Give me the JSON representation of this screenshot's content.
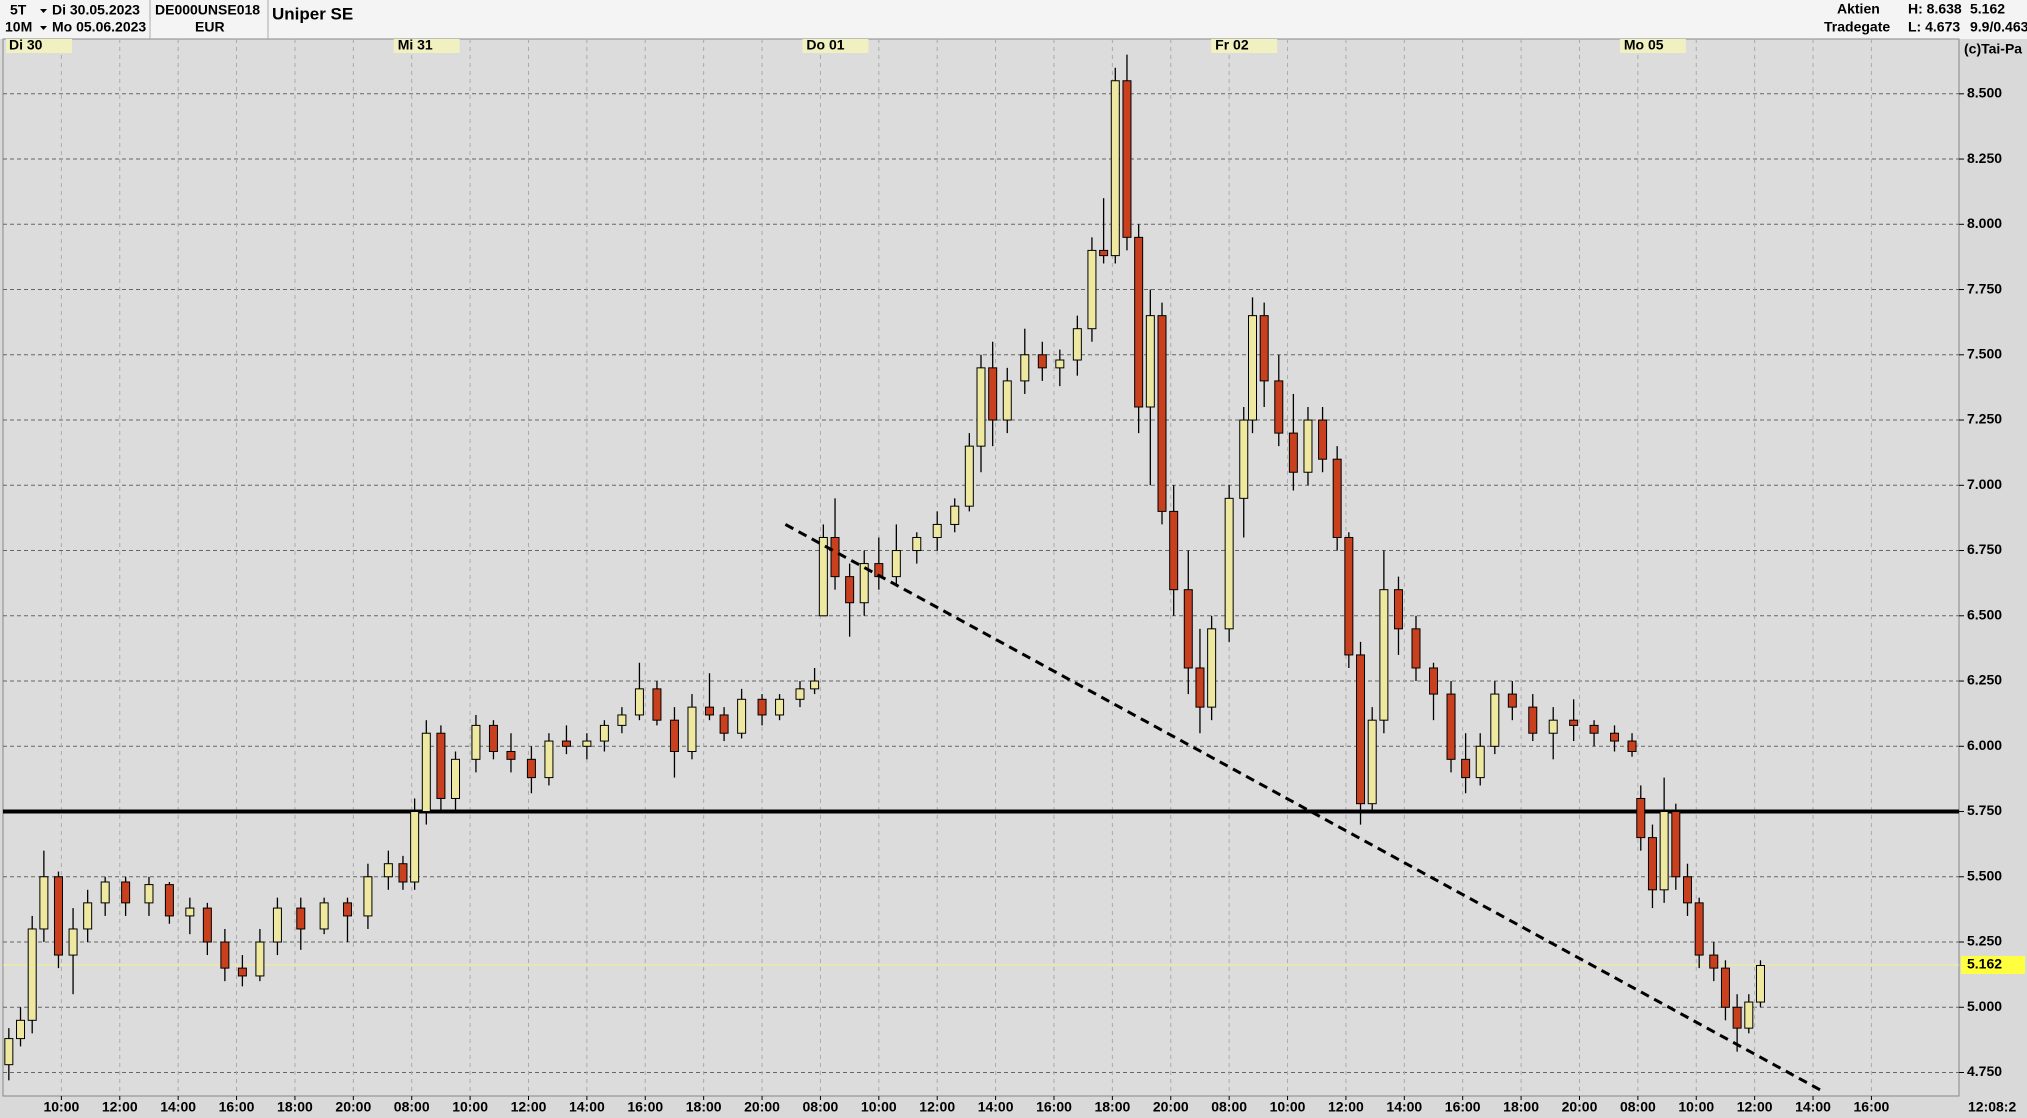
{
  "header": {
    "period": "5T",
    "from": "Di 30.05.2023",
    "interval": "10M",
    "to": "Mo 05.06.2023",
    "isin": "DE000UNSE018",
    "currency": "EUR",
    "name": "Uniper SE",
    "market_type": "Aktien",
    "exchange": "Tradegate",
    "high": "H: 8.638",
    "low": "L: 4.673",
    "last": "5.162",
    "change": "9.9/0.463",
    "copyright": "(c)Tai-Pa",
    "time": "12:08:2"
  },
  "chart_data": {
    "type": "candlestick",
    "up_color": "#eee8a0",
    "down_color": "#c8401e",
    "xlim": [
      0,
      67
    ],
    "ylim": [
      4.66,
      8.71
    ],
    "grid": true,
    "yticks": [
      {
        "value": 4.75,
        "label": "4.750"
      },
      {
        "value": 5,
        "label": "5.000"
      },
      {
        "value": 5.25,
        "label": "5.250"
      },
      {
        "value": 5.5,
        "label": "5.500"
      },
      {
        "value": 5.75,
        "label": "5.750"
      },
      {
        "value": 6,
        "label": "6.000"
      },
      {
        "value": 6.25,
        "label": "6.250"
      },
      {
        "value": 6.5,
        "label": "6.500"
      },
      {
        "value": 6.75,
        "label": "6.750"
      },
      {
        "value": 7,
        "label": "7.000"
      },
      {
        "value": 7.25,
        "label": "7.250"
      },
      {
        "value": 7.5,
        "label": "7.500"
      },
      {
        "value": 7.75,
        "label": "7.750"
      },
      {
        "value": 8,
        "label": "8.000"
      },
      {
        "value": 8.25,
        "label": "8.250"
      },
      {
        "value": 8.5,
        "label": "8.500"
      }
    ],
    "xticks": [
      {
        "value": 2,
        "label": "10:00"
      },
      {
        "value": 4,
        "label": "12:00"
      },
      {
        "value": 6,
        "label": "14:00"
      },
      {
        "value": 8,
        "label": "16:00"
      },
      {
        "value": 10,
        "label": "18:00"
      },
      {
        "value": 12,
        "label": "20:00"
      },
      {
        "value": 14,
        "label": "08:00"
      },
      {
        "value": 16,
        "label": "10:00"
      },
      {
        "value": 18,
        "label": "12:00"
      },
      {
        "value": 20,
        "label": "14:00"
      },
      {
        "value": 22,
        "label": "16:00"
      },
      {
        "value": 24,
        "label": "18:00"
      },
      {
        "value": 26,
        "label": "20:00"
      },
      {
        "value": 28,
        "label": "08:00"
      },
      {
        "value": 30,
        "label": "10:00"
      },
      {
        "value": 32,
        "label": "12:00"
      },
      {
        "value": 34,
        "label": "14:00"
      },
      {
        "value": 36,
        "label": "16:00"
      },
      {
        "value": 38,
        "label": "18:00"
      },
      {
        "value": 40,
        "label": "20:00"
      },
      {
        "value": 42,
        "label": "08:00"
      },
      {
        "value": 44,
        "label": "10:00"
      },
      {
        "value": 46,
        "label": "12:00"
      },
      {
        "value": 48,
        "label": "14:00"
      },
      {
        "value": 50,
        "label": "16:00"
      },
      {
        "value": 52,
        "label": "18:00"
      },
      {
        "value": 54,
        "label": "20:00"
      },
      {
        "value": 56,
        "label": "08:00"
      },
      {
        "value": 58,
        "label": "10:00"
      },
      {
        "value": 60,
        "label": "12:00"
      },
      {
        "value": 62,
        "label": "14:00"
      },
      {
        "value": 64,
        "label": "16:00"
      }
    ],
    "day_ticks": [
      {
        "value": 0,
        "label": "Di  30"
      },
      {
        "value": 14,
        "label": "Mi  31"
      },
      {
        "value": 28,
        "label": "Do  01"
      },
      {
        "value": 42,
        "label": "Fr  02"
      },
      {
        "value": 56,
        "label": "Mo  05"
      }
    ],
    "hline": {
      "value": 5.75
    },
    "trendline": {
      "x": [
        26.8,
        62.3
      ],
      "y": [
        6.85,
        4.68
      ]
    },
    "last_price": {
      "value": 5.162,
      "label": "5.162"
    },
    "candles": [
      {
        "x": 0.2,
        "open": 4.78,
        "high": 4.92,
        "low": 4.72,
        "close": 4.88
      },
      {
        "x": 0.6,
        "open": 4.88,
        "high": 5.0,
        "low": 4.85,
        "close": 4.95
      },
      {
        "x": 1.0,
        "open": 4.95,
        "high": 5.35,
        "low": 4.9,
        "close": 5.3
      },
      {
        "x": 1.4,
        "open": 5.3,
        "high": 5.6,
        "low": 5.25,
        "close": 5.5
      },
      {
        "x": 1.9,
        "open": 5.5,
        "high": 5.52,
        "low": 5.15,
        "close": 5.2
      },
      {
        "x": 2.4,
        "open": 5.2,
        "high": 5.38,
        "low": 5.05,
        "close": 5.3
      },
      {
        "x": 2.9,
        "open": 5.3,
        "high": 5.45,
        "low": 5.25,
        "close": 5.4
      },
      {
        "x": 3.5,
        "open": 5.4,
        "high": 5.5,
        "low": 5.35,
        "close": 5.48
      },
      {
        "x": 4.2,
        "open": 5.48,
        "high": 5.5,
        "low": 5.35,
        "close": 5.4
      },
      {
        "x": 5.0,
        "open": 5.4,
        "high": 5.5,
        "low": 5.35,
        "close": 5.47
      },
      {
        "x": 5.7,
        "open": 5.47,
        "high": 5.48,
        "low": 5.32,
        "close": 5.35
      },
      {
        "x": 6.4,
        "open": 5.35,
        "high": 5.42,
        "low": 5.28,
        "close": 5.38
      },
      {
        "x": 7.0,
        "open": 5.38,
        "high": 5.4,
        "low": 5.2,
        "close": 5.25
      },
      {
        "x": 7.6,
        "open": 5.25,
        "high": 5.3,
        "low": 5.1,
        "close": 5.15
      },
      {
        "x": 8.2,
        "open": 5.15,
        "high": 5.2,
        "low": 5.08,
        "close": 5.12
      },
      {
        "x": 8.8,
        "open": 5.12,
        "high": 5.3,
        "low": 5.1,
        "close": 5.25
      },
      {
        "x": 9.4,
        "open": 5.25,
        "high": 5.42,
        "low": 5.2,
        "close": 5.38
      },
      {
        "x": 10.2,
        "open": 5.38,
        "high": 5.42,
        "low": 5.22,
        "close": 5.3
      },
      {
        "x": 11.0,
        "open": 5.3,
        "high": 5.42,
        "low": 5.28,
        "close": 5.4
      },
      {
        "x": 11.8,
        "open": 5.4,
        "high": 5.42,
        "low": 5.25,
        "close": 5.35
      },
      {
        "x": 12.5,
        "open": 5.35,
        "high": 5.55,
        "low": 5.3,
        "close": 5.5
      },
      {
        "x": 13.2,
        "open": 5.5,
        "high": 5.6,
        "low": 5.45,
        "close": 5.55
      },
      {
        "x": 13.7,
        "open": 5.55,
        "high": 5.58,
        "low": 5.45,
        "close": 5.48
      },
      {
        "x": 14.1,
        "open": 5.48,
        "high": 5.8,
        "low": 5.45,
        "close": 5.75
      },
      {
        "x": 14.5,
        "open": 5.75,
        "high": 6.1,
        "low": 5.7,
        "close": 6.05
      },
      {
        "x": 15.0,
        "open": 6.05,
        "high": 6.08,
        "low": 5.75,
        "close": 5.8
      },
      {
        "x": 15.5,
        "open": 5.8,
        "high": 5.98,
        "low": 5.75,
        "close": 5.95
      },
      {
        "x": 16.2,
        "open": 5.95,
        "high": 6.12,
        "low": 5.9,
        "close": 6.08
      },
      {
        "x": 16.8,
        "open": 6.08,
        "high": 6.1,
        "low": 5.95,
        "close": 5.98
      },
      {
        "x": 17.4,
        "open": 5.98,
        "high": 6.05,
        "low": 5.9,
        "close": 5.95
      },
      {
        "x": 18.1,
        "open": 5.95,
        "high": 6.0,
        "low": 5.82,
        "close": 5.88
      },
      {
        "x": 18.7,
        "open": 5.88,
        "high": 6.05,
        "low": 5.85,
        "close": 6.02
      },
      {
        "x": 19.3,
        "open": 6.02,
        "high": 6.08,
        "low": 5.97,
        "close": 6.0
      },
      {
        "x": 20.0,
        "open": 6.0,
        "high": 6.05,
        "low": 5.95,
        "close": 6.02
      },
      {
        "x": 20.6,
        "open": 6.02,
        "high": 6.1,
        "low": 5.98,
        "close": 6.08
      },
      {
        "x": 21.2,
        "open": 6.08,
        "high": 6.15,
        "low": 6.05,
        "close": 6.12
      },
      {
        "x": 21.8,
        "open": 6.12,
        "high": 6.32,
        "low": 6.1,
        "close": 6.22
      },
      {
        "x": 22.4,
        "open": 6.22,
        "high": 6.25,
        "low": 6.08,
        "close": 6.1
      },
      {
        "x": 23.0,
        "open": 6.1,
        "high": 6.15,
        "low": 5.88,
        "close": 5.98
      },
      {
        "x": 23.6,
        "open": 5.98,
        "high": 6.2,
        "low": 5.95,
        "close": 6.15
      },
      {
        "x": 24.2,
        "open": 6.15,
        "high": 6.28,
        "low": 6.1,
        "close": 6.12
      },
      {
        "x": 24.7,
        "open": 6.12,
        "high": 6.15,
        "low": 6.02,
        "close": 6.05
      },
      {
        "x": 25.3,
        "open": 6.05,
        "high": 6.22,
        "low": 6.03,
        "close": 6.18
      },
      {
        "x": 26.0,
        "open": 6.18,
        "high": 6.2,
        "low": 6.08,
        "close": 6.12
      },
      {
        "x": 26.6,
        "open": 6.12,
        "high": 6.2,
        "low": 6.1,
        "close": 6.18
      },
      {
        "x": 27.3,
        "open": 6.18,
        "high": 6.25,
        "low": 6.15,
        "close": 6.22
      },
      {
        "x": 27.8,
        "open": 6.22,
        "high": 6.3,
        "low": 6.2,
        "close": 6.25
      },
      {
        "x": 28.1,
        "open": 6.5,
        "high": 6.85,
        "low": 6.5,
        "close": 6.8
      },
      {
        "x": 28.5,
        "open": 6.8,
        "high": 6.95,
        "low": 6.6,
        "close": 6.65
      },
      {
        "x": 29.0,
        "open": 6.65,
        "high": 6.7,
        "low": 6.42,
        "close": 6.55
      },
      {
        "x": 29.5,
        "open": 6.55,
        "high": 6.75,
        "low": 6.5,
        "close": 6.7
      },
      {
        "x": 30.0,
        "open": 6.7,
        "high": 6.8,
        "low": 6.6,
        "close": 6.65
      },
      {
        "x": 30.6,
        "open": 6.65,
        "high": 6.85,
        "low": 6.62,
        "close": 6.75
      },
      {
        "x": 31.3,
        "open": 6.75,
        "high": 6.82,
        "low": 6.7,
        "close": 6.8
      },
      {
        "x": 32.0,
        "open": 6.8,
        "high": 6.9,
        "low": 6.75,
        "close": 6.85
      },
      {
        "x": 32.6,
        "open": 6.85,
        "high": 6.95,
        "low": 6.82,
        "close": 6.92
      },
      {
        "x": 33.1,
        "open": 6.92,
        "high": 7.2,
        "low": 6.9,
        "close": 7.15
      },
      {
        "x": 33.5,
        "open": 7.15,
        "high": 7.5,
        "low": 7.05,
        "close": 7.45
      },
      {
        "x": 33.9,
        "open": 7.45,
        "high": 7.55,
        "low": 7.15,
        "close": 7.25
      },
      {
        "x": 34.4,
        "open": 7.25,
        "high": 7.45,
        "low": 7.2,
        "close": 7.4
      },
      {
        "x": 35.0,
        "open": 7.4,
        "high": 7.6,
        "low": 7.35,
        "close": 7.5
      },
      {
        "x": 35.6,
        "open": 7.5,
        "high": 7.55,
        "low": 7.4,
        "close": 7.45
      },
      {
        "x": 36.2,
        "open": 7.45,
        "high": 7.52,
        "low": 7.38,
        "close": 7.48
      },
      {
        "x": 36.8,
        "open": 7.48,
        "high": 7.65,
        "low": 7.42,
        "close": 7.6
      },
      {
        "x": 37.3,
        "open": 7.6,
        "high": 7.95,
        "low": 7.55,
        "close": 7.9
      },
      {
        "x": 37.7,
        "open": 7.9,
        "high": 8.1,
        "low": 7.85,
        "close": 7.88
      },
      {
        "x": 38.1,
        "open": 7.88,
        "high": 8.6,
        "low": 7.85,
        "close": 8.55
      },
      {
        "x": 38.5,
        "open": 8.55,
        "high": 8.65,
        "low": 7.9,
        "close": 7.95
      },
      {
        "x": 38.9,
        "open": 7.95,
        "high": 8.0,
        "low": 7.2,
        "close": 7.3
      },
      {
        "x": 39.3,
        "open": 7.3,
        "high": 7.75,
        "low": 7.0,
        "close": 7.65
      },
      {
        "x": 39.7,
        "open": 7.65,
        "high": 7.7,
        "low": 6.85,
        "close": 6.9
      },
      {
        "x": 40.1,
        "open": 6.9,
        "high": 7.0,
        "low": 6.5,
        "close": 6.6
      },
      {
        "x": 40.6,
        "open": 6.6,
        "high": 6.75,
        "low": 6.2,
        "close": 6.3
      },
      {
        "x": 41.0,
        "open": 6.3,
        "high": 6.45,
        "low": 6.05,
        "close": 6.15
      },
      {
        "x": 41.4,
        "open": 6.15,
        "high": 6.5,
        "low": 6.1,
        "close": 6.45
      },
      {
        "x": 42.0,
        "open": 6.45,
        "high": 7.0,
        "low": 6.4,
        "close": 6.95
      },
      {
        "x": 42.5,
        "open": 6.95,
        "high": 7.3,
        "low": 6.8,
        "close": 7.25
      },
      {
        "x": 42.8,
        "open": 7.25,
        "high": 7.72,
        "low": 7.2,
        "close": 7.65
      },
      {
        "x": 43.2,
        "open": 7.65,
        "high": 7.7,
        "low": 7.3,
        "close": 7.4
      },
      {
        "x": 43.7,
        "open": 7.4,
        "high": 7.5,
        "low": 7.15,
        "close": 7.2
      },
      {
        "x": 44.2,
        "open": 7.2,
        "high": 7.35,
        "low": 6.98,
        "close": 7.05
      },
      {
        "x": 44.7,
        "open": 7.05,
        "high": 7.3,
        "low": 7.0,
        "close": 7.25
      },
      {
        "x": 45.2,
        "open": 7.25,
        "high": 7.3,
        "low": 7.05,
        "close": 7.1
      },
      {
        "x": 45.7,
        "open": 7.1,
        "high": 7.15,
        "low": 6.75,
        "close": 6.8
      },
      {
        "x": 46.1,
        "open": 6.8,
        "high": 6.82,
        "low": 6.3,
        "close": 6.35
      },
      {
        "x": 46.5,
        "open": 6.35,
        "high": 6.4,
        "low": 5.7,
        "close": 5.78
      },
      {
        "x": 46.9,
        "open": 5.78,
        "high": 6.15,
        "low": 5.75,
        "close": 6.1
      },
      {
        "x": 47.3,
        "open": 6.1,
        "high": 6.75,
        "low": 6.05,
        "close": 6.6
      },
      {
        "x": 47.8,
        "open": 6.6,
        "high": 6.65,
        "low": 6.35,
        "close": 6.45
      },
      {
        "x": 48.4,
        "open": 6.45,
        "high": 6.5,
        "low": 6.25,
        "close": 6.3
      },
      {
        "x": 49.0,
        "open": 6.3,
        "high": 6.32,
        "low": 6.1,
        "close": 6.2
      },
      {
        "x": 49.6,
        "open": 6.2,
        "high": 6.25,
        "low": 5.9,
        "close": 5.95
      },
      {
        "x": 50.1,
        "open": 5.95,
        "high": 6.05,
        "low": 5.82,
        "close": 5.88
      },
      {
        "x": 50.6,
        "open": 5.88,
        "high": 6.05,
        "low": 5.85,
        "close": 6.0
      },
      {
        "x": 51.1,
        "open": 6.0,
        "high": 6.25,
        "low": 5.97,
        "close": 6.2
      },
      {
        "x": 51.7,
        "open": 6.2,
        "high": 6.25,
        "low": 6.1,
        "close": 6.15
      },
      {
        "x": 52.4,
        "open": 6.15,
        "high": 6.2,
        "low": 6.02,
        "close": 6.05
      },
      {
        "x": 53.1,
        "open": 6.05,
        "high": 6.15,
        "low": 5.95,
        "close": 6.1
      },
      {
        "x": 53.8,
        "open": 6.1,
        "high": 6.18,
        "low": 6.02,
        "close": 6.08
      },
      {
        "x": 54.5,
        "open": 6.08,
        "high": 6.1,
        "low": 6.0,
        "close": 6.05
      },
      {
        "x": 55.2,
        "open": 6.05,
        "high": 6.08,
        "low": 5.98,
        "close": 6.02
      },
      {
        "x": 55.8,
        "open": 6.02,
        "high": 6.05,
        "low": 5.96,
        "close": 5.98
      },
      {
        "x": 56.1,
        "open": 5.8,
        "high": 5.85,
        "low": 5.6,
        "close": 5.65
      },
      {
        "x": 56.5,
        "open": 5.65,
        "high": 5.7,
        "low": 5.38,
        "close": 5.45
      },
      {
        "x": 56.9,
        "open": 5.45,
        "high": 5.88,
        "low": 5.4,
        "close": 5.75
      },
      {
        "x": 57.3,
        "open": 5.75,
        "high": 5.78,
        "low": 5.45,
        "close": 5.5
      },
      {
        "x": 57.7,
        "open": 5.5,
        "high": 5.55,
        "low": 5.35,
        "close": 5.4
      },
      {
        "x": 58.1,
        "open": 5.4,
        "high": 5.42,
        "low": 5.15,
        "close": 5.2
      },
      {
        "x": 58.6,
        "open": 5.2,
        "high": 5.25,
        "low": 5.1,
        "close": 5.15
      },
      {
        "x": 59.0,
        "open": 5.15,
        "high": 5.18,
        "low": 4.95,
        "close": 5.0
      },
      {
        "x": 59.4,
        "open": 5.0,
        "high": 5.05,
        "low": 4.83,
        "close": 4.92
      },
      {
        "x": 59.8,
        "open": 4.92,
        "high": 5.05,
        "low": 4.9,
        "close": 5.02
      },
      {
        "x": 60.2,
        "open": 5.02,
        "high": 5.18,
        "low": 5.0,
        "close": 5.16
      }
    ]
  }
}
